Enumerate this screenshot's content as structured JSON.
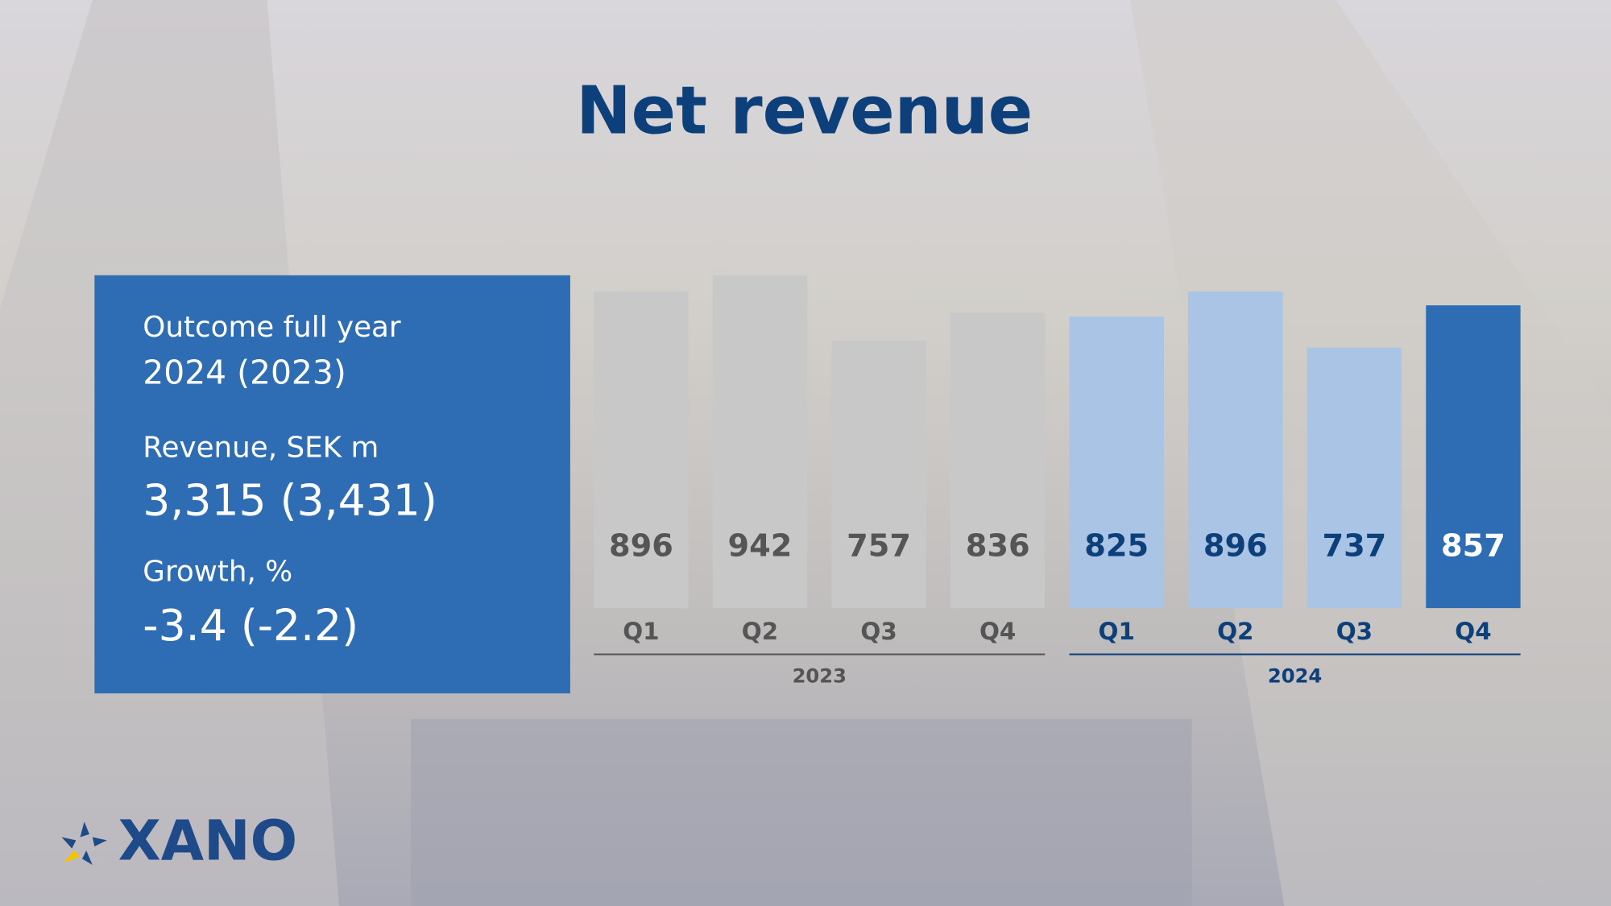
{
  "chart_data": {
    "type": "bar",
    "title": "Net revenue",
    "categories": [
      "Q1",
      "Q2",
      "Q3",
      "Q4",
      "Q1",
      "Q2",
      "Q3",
      "Q4"
    ],
    "groups": [
      "2023",
      "2024"
    ],
    "values": [
      896,
      942,
      757,
      836,
      825,
      896,
      737,
      857
    ],
    "colors": [
      "#c8c8c8",
      "#c8c8c8",
      "#c8c8c8",
      "#c8c8c8",
      "#a9c4e4",
      "#a9c4e4",
      "#a9c4e4",
      "#2e6db4"
    ],
    "label_colors": [
      "#555555",
      "#555555",
      "#555555",
      "#555555",
      "#0d3f7a",
      "#0d3f7a",
      "#0d3f7a",
      "#ffffff"
    ]
  },
  "panel": {
    "period_label": "Outcome full year",
    "period": "2024 (2023)",
    "revenue_label": "Revenue, SEK m",
    "revenue": "3,315 (3,431)",
    "growth_label": "Growth, %",
    "growth": "-3.4 (-2.2)"
  },
  "logo": "XANO"
}
